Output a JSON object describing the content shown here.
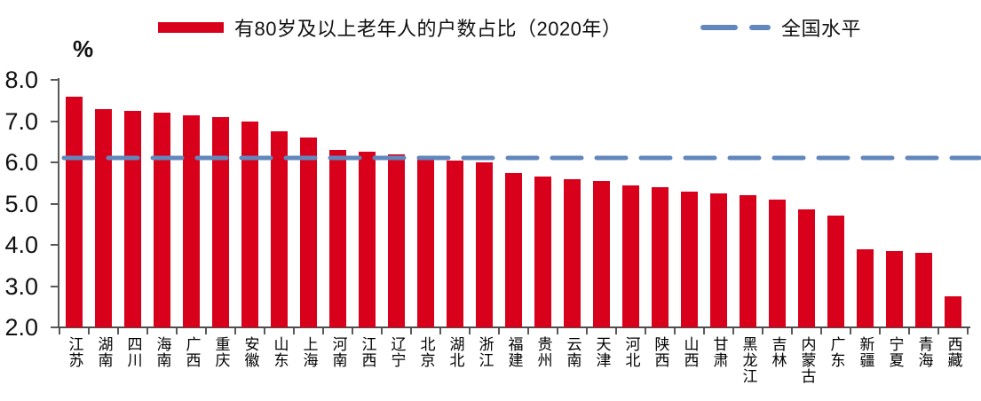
{
  "legend": {
    "bar_series_label": "有80岁及以上老年人的户数占比（2020年）",
    "line_series_label": "全国水平"
  },
  "y_axis": {
    "unit_label": "%",
    "tick_labels": [
      "8.0",
      "7.0",
      "6.0",
      "5.0",
      "4.0",
      "3.0",
      "2.0"
    ]
  },
  "colors": {
    "bar": "#d9001b",
    "reference_line": "#6287bc",
    "axis": "#595959"
  },
  "chart_data": {
    "type": "bar",
    "title": "有80岁及以上老年人的户数占比（2020年）",
    "ylabel": "%",
    "xlabel": "",
    "grid": false,
    "legend_position": "top",
    "ylim": [
      2.0,
      8.0
    ],
    "ytick_step": 1.0,
    "categories": [
      "江苏",
      "湖南",
      "四川",
      "海南",
      "广西",
      "重庆",
      "安徽",
      "山东",
      "上海",
      "河南",
      "江西",
      "辽宁",
      "北京",
      "湖北",
      "浙江",
      "福建",
      "贵州",
      "云南",
      "天津",
      "河北",
      "陕西",
      "山西",
      "甘肃",
      "黑龙江",
      "吉林",
      "内蒙古",
      "广东",
      "新疆",
      "宁夏",
      "青海",
      "西藏"
    ],
    "series": [
      {
        "name": "有80岁及以上老年人的户数占比（2020年）",
        "color": "#d9001b",
        "values": [
          7.6,
          7.3,
          7.25,
          7.2,
          7.15,
          7.1,
          7.0,
          6.75,
          6.6,
          6.3,
          6.25,
          6.2,
          6.15,
          6.05,
          6.0,
          5.75,
          5.65,
          5.6,
          5.55,
          5.45,
          5.4,
          5.3,
          5.25,
          5.2,
          5.1,
          4.85,
          4.7,
          3.9,
          3.85,
          3.8,
          2.75
        ]
      }
    ],
    "reference_line": {
      "name": "全国水平",
      "value": 6.1,
      "color": "#6287bc",
      "style": "dashed"
    }
  }
}
